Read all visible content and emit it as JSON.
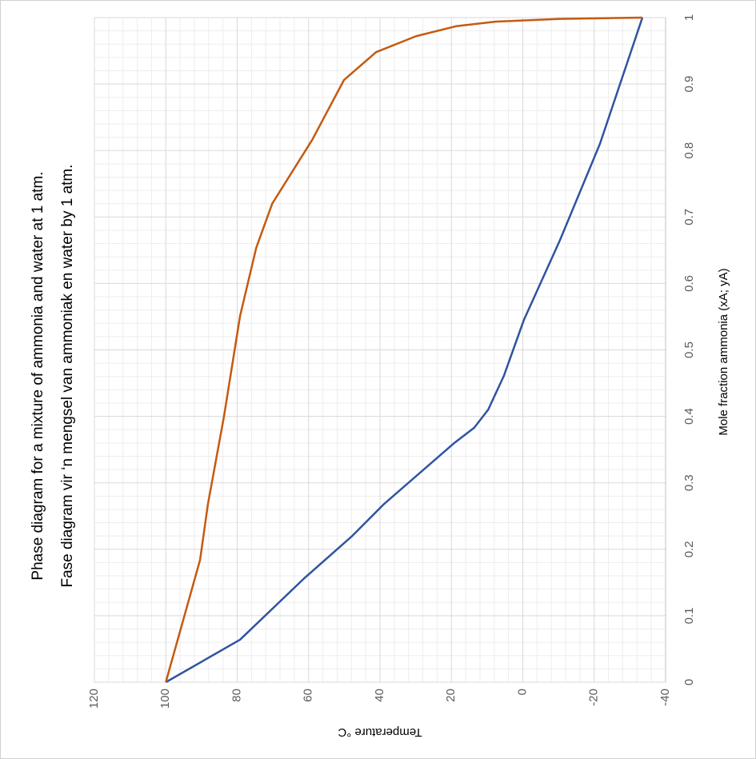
{
  "chart_data": {
    "type": "line",
    "title": "Phase diagram for a mixture of ammonia and water at 1 atm.",
    "subtitle": "Fase diagram vir ‘n mengsel van ammoniak en water by 1 atm.",
    "x_label": "Mole fraction ammonia (xA; yA)",
    "y_label": "Temperature °C",
    "xlim": [
      0,
      1
    ],
    "xticks": [
      0,
      0.1,
      0.2,
      0.3,
      0.4,
      0.5,
      0.6,
      0.7,
      0.8,
      0.9,
      1
    ],
    "ylim": [
      -40,
      120
    ],
    "yticks": [
      -40,
      -20,
      0,
      20,
      40,
      60,
      80,
      100,
      120
    ],
    "grid": true,
    "minor_subdivisions": 5,
    "rotation": -90,
    "series": [
      {
        "color": "#2f54a0",
        "x": [
          0,
          0.064,
          0.156,
          0.22,
          0.268,
          0.359,
          0.383,
          0.41,
          0.461,
          0.545,
          0.665,
          0.81,
          1
        ],
        "values": [
          100,
          79.2,
          61.3,
          47.8,
          38.9,
          19.4,
          13.6,
          9.7,
          5.3,
          -0.3,
          -10.4,
          -21.6,
          -33.5
        ]
      },
      {
        "color": "#c55a11",
        "x": [
          0,
          0.184,
          0.268,
          0.4,
          0.551,
          0.653,
          0.72,
          0.816,
          0.906,
          0.948,
          0.972,
          0.987,
          0.994,
          0.998,
          1
        ],
        "values": [
          100,
          90.4,
          88.2,
          83.7,
          79.2,
          74.7,
          70.2,
          59,
          50.1,
          41.1,
          29.9,
          18.7,
          7.5,
          -10.4,
          -33.5
        ]
      }
    ]
  }
}
